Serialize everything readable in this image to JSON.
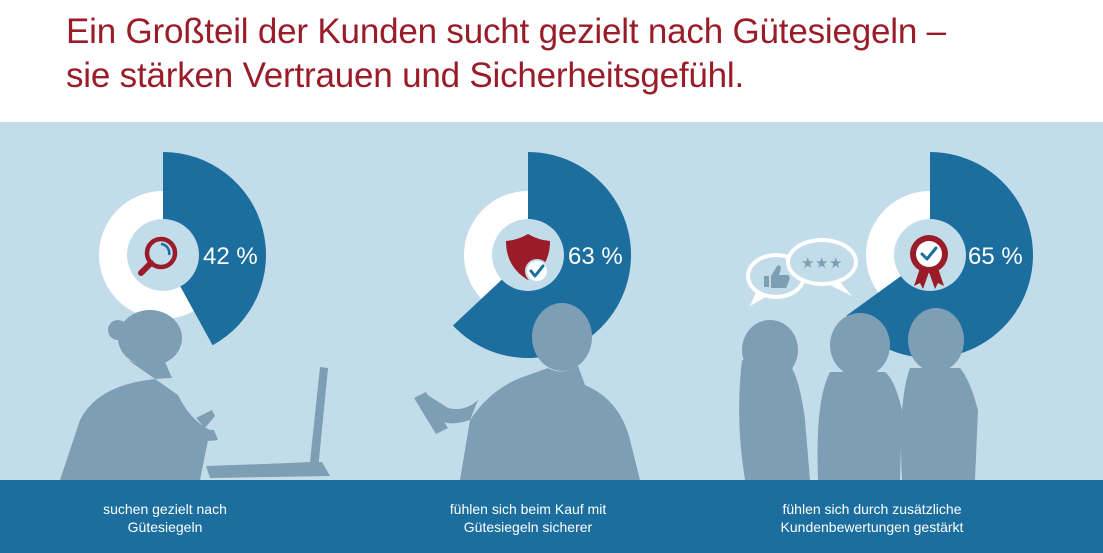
{
  "header": {
    "title_line1": "Ein Großteil der Kunden sucht gezielt nach Gütesiegeln –",
    "title_line2": "sie stärken Vertrauen und Sicherheitsgefühl."
  },
  "chart_data": {
    "type": "pie",
    "unit": "%",
    "items": [
      {
        "value": 42,
        "label": "42 %",
        "caption_line1": "suchen gezielt nach",
        "caption_line2": "Gütesiegeln",
        "icon": "magnifier-icon"
      },
      {
        "value": 63,
        "label": "63 %",
        "caption_line1": "fühlen sich beim Kauf mit",
        "caption_line2": "Gütesiegeln sicherer",
        "icon": "shield-check-icon"
      },
      {
        "value": 65,
        "label": "65 %",
        "caption_line1": "fühlen sich durch zusätzliche",
        "caption_line2": "Kundenbewertungen gestärkt",
        "icon": "award-badge-icon"
      }
    ]
  },
  "colors": {
    "background": "#c3dcea",
    "title": "#9a1c28",
    "segment": "#1b6e9e",
    "ring": "#ffffff",
    "silhouette": "#7e9eb5",
    "accent_red": "#9a1c28",
    "footer": "#1b6e9e"
  }
}
